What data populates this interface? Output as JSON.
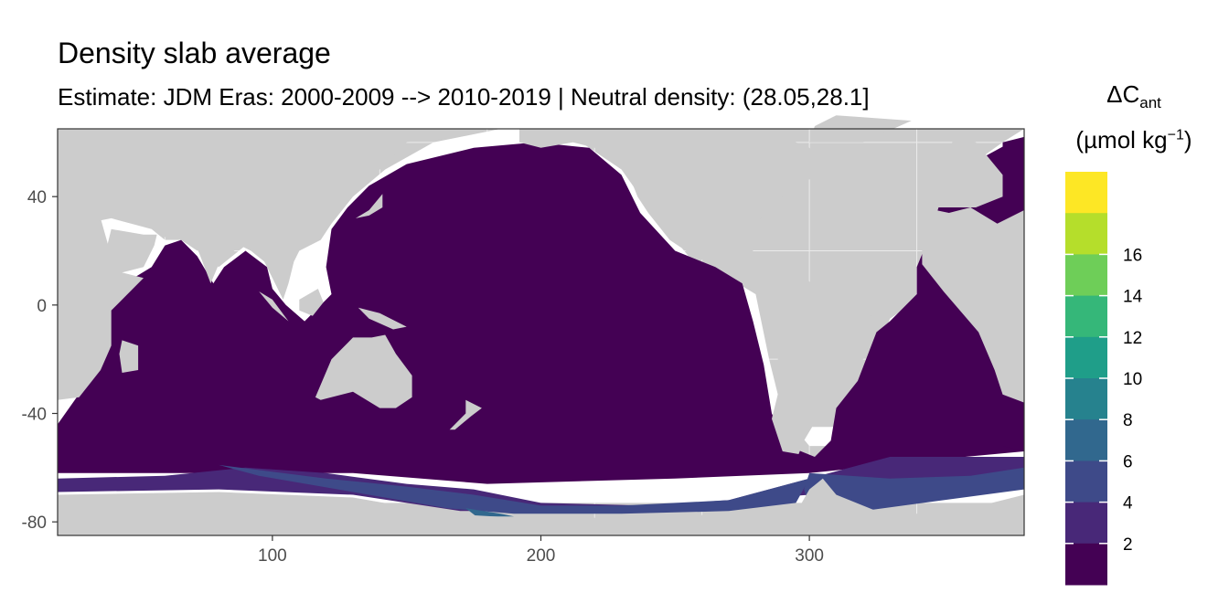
{
  "chart_data": {
    "type": "heatmap",
    "title": "Density slab average",
    "subtitle": "Estimate: JDM Eras: 2000-2009 --> 2010-2019 | Neutral density: (28.05,28.1]",
    "xlabel": "",
    "ylabel": "",
    "xlim": [
      20,
      380
    ],
    "ylim": [
      -85,
      65
    ],
    "x_ticks": [
      "100",
      "200",
      "300"
    ],
    "x_tick_values": [
      100,
      200,
      300
    ],
    "y_ticks": [
      "40",
      "0",
      "-40",
      "-80"
    ],
    "y_tick_values": [
      40,
      0,
      -40,
      -80
    ],
    "grid": true,
    "legend": {
      "title_main": "ΔC",
      "title_sub": "ant",
      "unit_main": "(µmol kg",
      "unit_sup": "−1",
      "unit_close": ")",
      "position": "right",
      "labels": [
        "2",
        "4",
        "6",
        "8",
        "10",
        "12",
        "14",
        "16"
      ],
      "breaks": [
        2,
        4,
        6,
        8,
        10,
        12,
        14,
        16
      ],
      "colors": [
        "#440154",
        "#482878",
        "#3e4a89",
        "#31688e",
        "#26828e",
        "#1f9e89",
        "#35b779",
        "#6ece58",
        "#b5de2b",
        "#fde725"
      ]
    },
    "colors": {
      "land": "#cccccc",
      "no_data": "#ffffff",
      "ocean_low": "#440154"
    },
    "value_summary": {
      "most_of_ocean": "< 2",
      "antarctic_shelf_band": "2-6",
      "ross_sea_patch": "6-8"
    }
  }
}
